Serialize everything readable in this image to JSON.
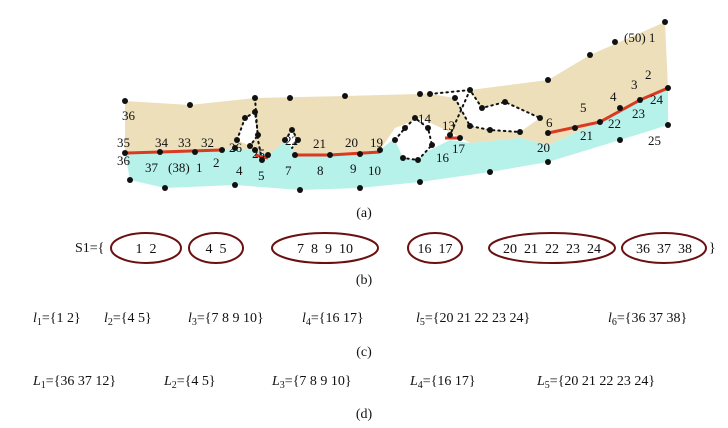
{
  "diagram": {
    "colors": {
      "upper_region": "#ecdfb9",
      "lower_region": "#b6f2ea",
      "boundary": "#d83a22",
      "point": "#111111",
      "loop": "#6a1010"
    },
    "point_labels": [
      "(50) 1",
      "2",
      "3",
      "4",
      "24",
      "5",
      "23",
      "22",
      "21",
      "6",
      "20",
      "25",
      "36",
      "35",
      "34",
      "33",
      "32",
      "26",
      "22",
      "21",
      "20",
      "19",
      "14",
      "13",
      "17",
      "16",
      "36",
      "37",
      "(38)",
      "1",
      "2",
      "4",
      "25",
      "5",
      "7",
      "8",
      "9",
      "10"
    ],
    "captions": [
      "(a)",
      "(b)",
      "(c)",
      "(d)"
    ],
    "s1": {
      "prefix": "S1={",
      "suffix": "}",
      "groups": [
        "1  2",
        "4  5",
        "7  8  9  10",
        "16  17",
        "20  21  22  23  24",
        "36  37  38"
      ]
    },
    "l_sets": [
      {
        "name": "l",
        "sub": "1",
        "value": "={1 2}"
      },
      {
        "name": "l",
        "sub": "2",
        "value": "={4 5}"
      },
      {
        "name": "l",
        "sub": "3",
        "value": "={7 8 9 10}"
      },
      {
        "name": "l",
        "sub": "4",
        "value": "={16 17}"
      },
      {
        "name": "l",
        "sub": "5",
        "value": "={20 21 22 23 24}"
      },
      {
        "name": "l",
        "sub": "6",
        "value": "={36 37 38}"
      }
    ],
    "L_sets": [
      {
        "name": "L",
        "sub": "1",
        "value": "={36 37 12}"
      },
      {
        "name": "L",
        "sub": "2",
        "value": "={4 5}"
      },
      {
        "name": "L",
        "sub": "3",
        "value": "={7 8 9 10}"
      },
      {
        "name": "L",
        "sub": "4",
        "value": "={16 17}"
      },
      {
        "name": "L",
        "sub": "5",
        "value": "={20 21 22 23 24}"
      }
    ]
  }
}
